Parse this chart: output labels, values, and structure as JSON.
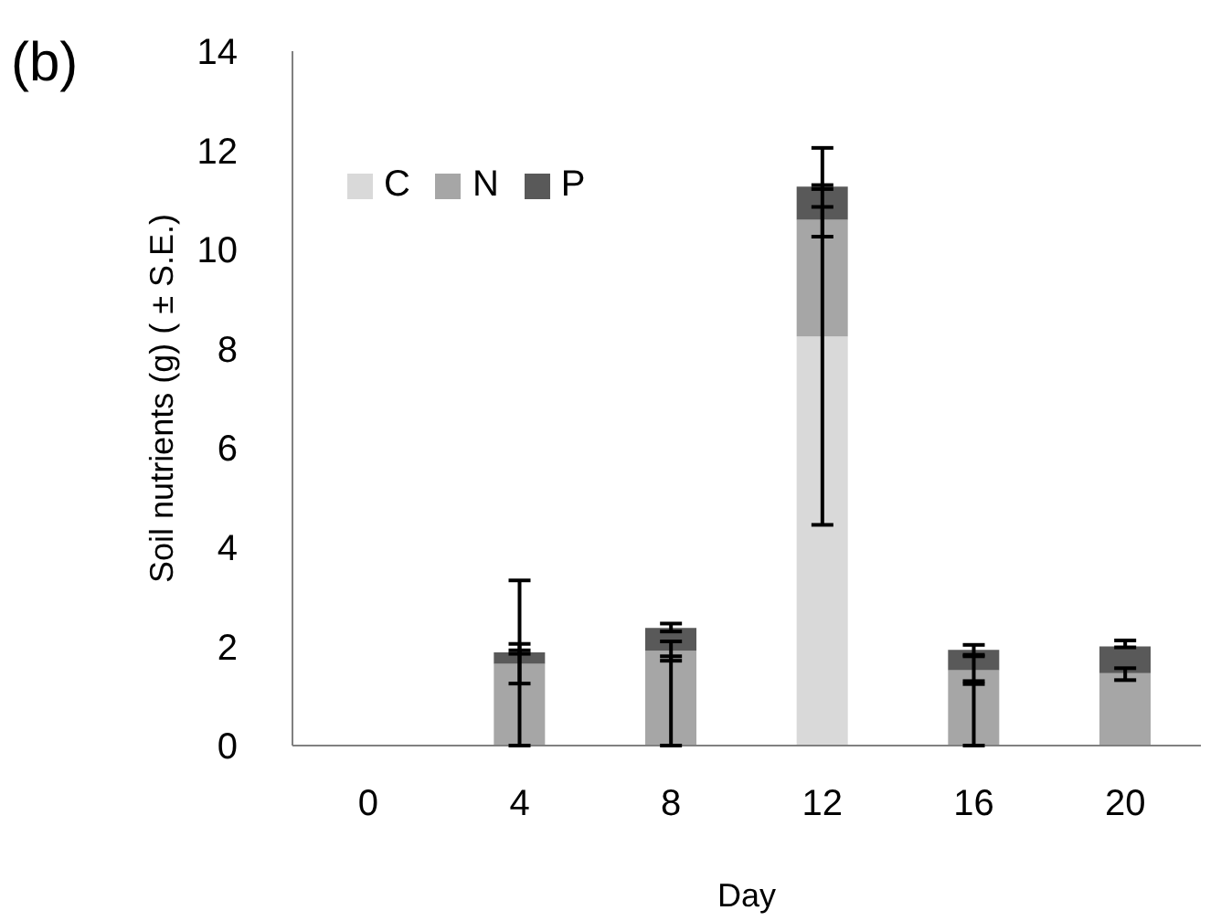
{
  "chart_data": {
    "type": "bar",
    "title": "(b)",
    "xlabel": "Day",
    "ylabel": "Soil nutrients (g) ( ± S.E.)",
    "categories": [
      "0",
      "4",
      "8",
      "12",
      "16",
      "20"
    ],
    "stacked": true,
    "series": [
      {
        "name": "C",
        "color": "#d9d9d9",
        "values": [
          0,
          0,
          0,
          8.25,
          0,
          0
        ],
        "errors": [
          null,
          [
            0,
            3.33
          ],
          [
            0,
            1.8
          ],
          [
            4.45,
            12.05
          ],
          [
            0,
            1.3
          ],
          null
        ]
      },
      {
        "name": "N",
        "color": "#a6a6a6",
        "values": [
          0,
          1.65,
          1.91,
          2.35,
          1.52,
          1.46
        ],
        "errors": [
          null,
          [
            1.25,
            2.05
          ],
          [
            1.71,
            2.1
          ],
          [
            10.26,
            10.86
          ],
          [
            1.24,
            1.8
          ],
          [
            1.32,
            1.56
          ]
        ]
      },
      {
        "name": "P",
        "color": "#595959",
        "values": [
          0,
          0.23,
          0.46,
          0.67,
          0.41,
          0.54
        ],
        "errors": [
          null,
          [
            1.85,
            1.92
          ],
          [
            2.3,
            2.46
          ],
          [
            11.22,
            11.3
          ],
          [
            1.83,
            2.03
          ],
          [
            1.98,
            2.12
          ]
        ]
      }
    ],
    "ylim": [
      0,
      14
    ],
    "yticks": [
      0,
      2,
      4,
      6,
      8,
      10,
      12,
      14
    ],
    "grid": false,
    "legend": "top left"
  }
}
